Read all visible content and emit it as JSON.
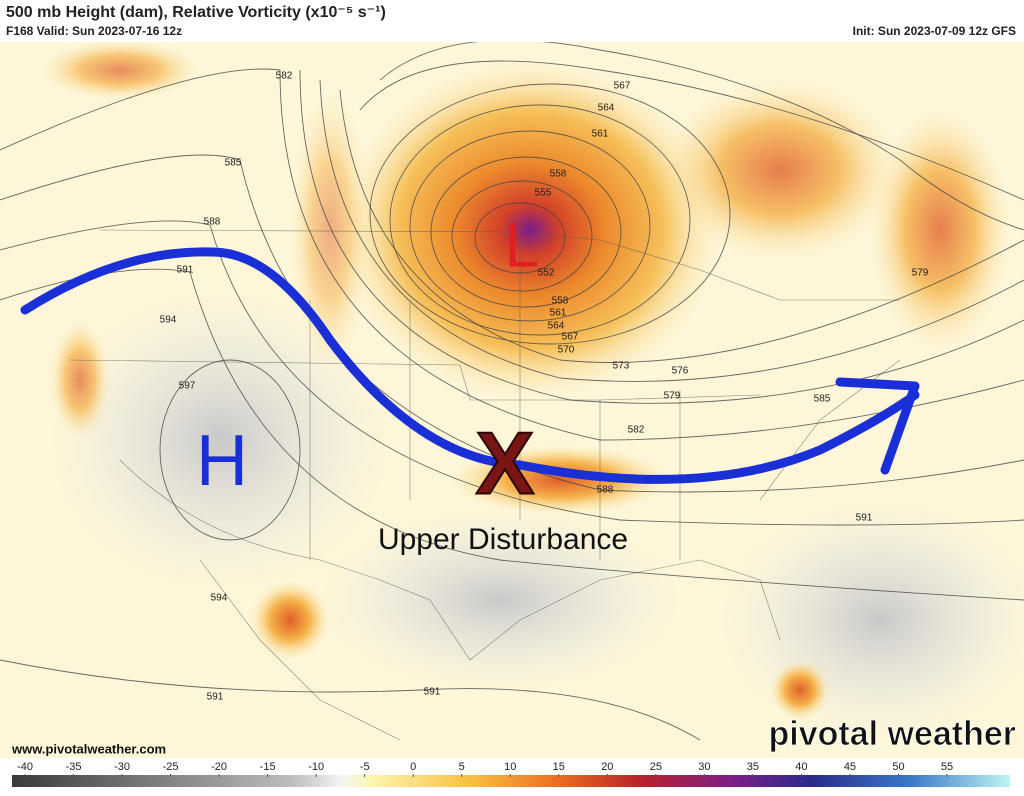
{
  "header": {
    "title": "500 mb Height (dam), Relative Vorticity (x10⁻⁵ s⁻¹)",
    "valid": "F168 Valid: Sun 2023-07-16 12z",
    "init": "Init: Sun 2023-07-09 12z GFS"
  },
  "contour_labels": [
    582,
    585,
    588,
    591,
    594,
    597,
    567,
    564,
    561,
    558,
    555,
    552,
    558,
    561,
    564,
    567,
    570,
    573,
    576,
    579,
    582,
    585,
    588,
    591,
    594,
    591,
    591,
    579
  ],
  "annotations": {
    "high": "H",
    "low": "L",
    "disturbance_mark": "X",
    "disturbance_label": "Upper Disturbance"
  },
  "watermark": {
    "url": "www.pivotalweather.com",
    "brand": "pivotal weather"
  },
  "colorbar": {
    "ticks": [
      -40,
      -35,
      -30,
      -25,
      -20,
      -15,
      -10,
      -5,
      0,
      5,
      10,
      15,
      20,
      25,
      30,
      35,
      40,
      45,
      50,
      55
    ]
  }
}
